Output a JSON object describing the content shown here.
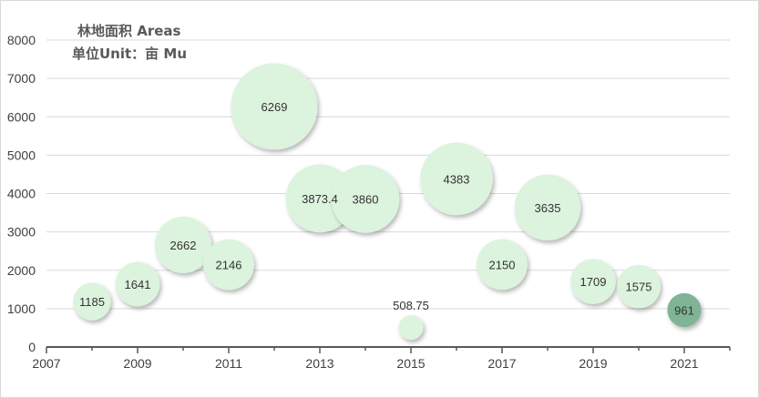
{
  "chart_data": {
    "type": "bubble",
    "title_line1": "林地面积 Areas",
    "title_line2": "单位Unit：亩 Mu",
    "xlabel": "",
    "ylabel": "",
    "xlim": [
      2007,
      2022
    ],
    "ylim": [
      0,
      8000
    ],
    "x_ticks": [
      "2007",
      "2009",
      "2011",
      "2013",
      "2015",
      "2017",
      "2019",
      "2021"
    ],
    "y_ticks": [
      "0",
      "1000",
      "2000",
      "3000",
      "4000",
      "5000",
      "6000",
      "7000",
      "8000"
    ],
    "grid": true,
    "colors": {
      "bubble": "#dcf3de",
      "highlight": "#7fb496",
      "grid": "#d9d9d9",
      "axis": "#595959"
    },
    "points": [
      {
        "x": 2008,
        "y": 1185,
        "label": "1185",
        "size": 1185
      },
      {
        "x": 2009,
        "y": 1641,
        "label": "1641",
        "size": 1641
      },
      {
        "x": 2010,
        "y": 2662,
        "label": "2662",
        "size": 2662
      },
      {
        "x": 2011,
        "y": 2146,
        "label": "2146",
        "size": 2146
      },
      {
        "x": 2012,
        "y": 6269,
        "label": "6269",
        "size": 6269
      },
      {
        "x": 2013,
        "y": 3873.4,
        "label": "3873.4",
        "size": 3873.4
      },
      {
        "x": 2014,
        "y": 3860,
        "label": "3860",
        "size": 3860
      },
      {
        "x": 2015,
        "y": 508.75,
        "label": "508.75",
        "size": 508.75
      },
      {
        "x": 2016,
        "y": 4383,
        "label": "4383",
        "size": 4383
      },
      {
        "x": 2017,
        "y": 2150,
        "label": "2150",
        "size": 2150
      },
      {
        "x": 2018,
        "y": 3635,
        "label": "3635",
        "size": 3635
      },
      {
        "x": 2019,
        "y": 1709,
        "label": "1709",
        "size": 1709
      },
      {
        "x": 2020,
        "y": 1575,
        "label": "1575",
        "size": 1575
      },
      {
        "x": 2021,
        "y": 961,
        "label": "961",
        "size": 961,
        "highlight": true
      }
    ]
  }
}
